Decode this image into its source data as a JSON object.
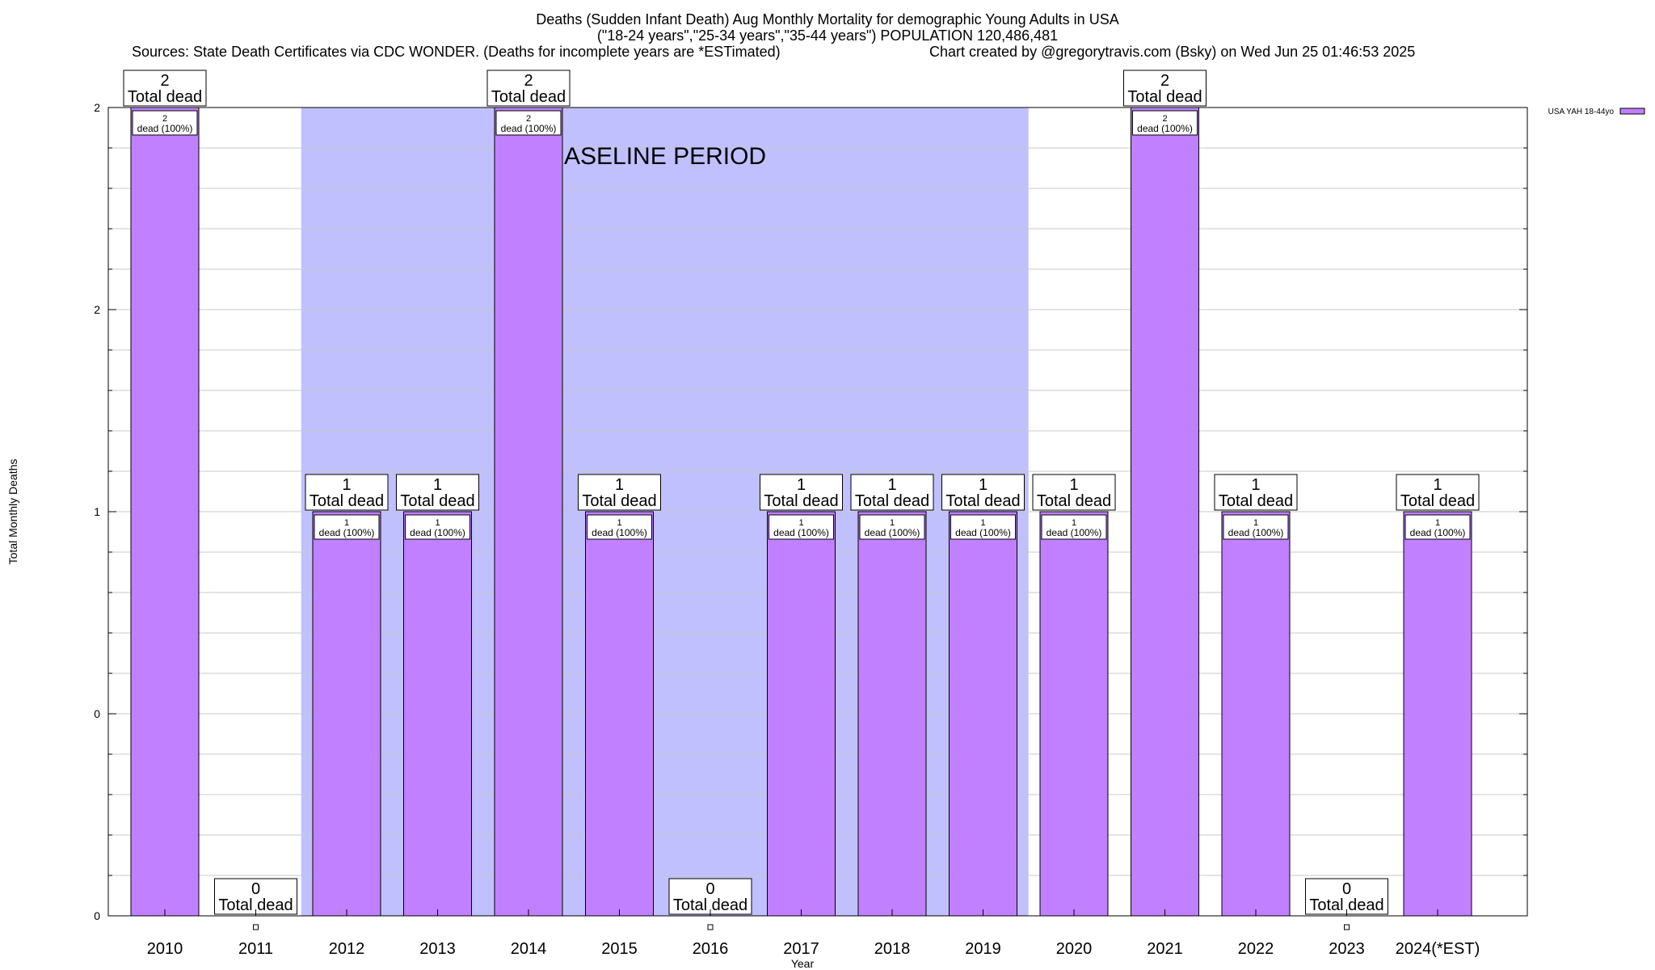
{
  "title": {
    "line1": "Deaths (Sudden Infant Death) Aug Monthly Mortality for demographic Young Adults in USA",
    "line2": "(\"18-24 years\",\"25-34 years\",\"35-44 years\") POPULATION 120,486,481",
    "line3_left": "Sources: State Death Certificates via CDC WONDER. (Deaths for incomplete years are *ESTimated)",
    "line3_right": "Chart created by @gregorytravis.com (Bsky) on Wed Jun 25 01:46:53 2025"
  },
  "chart_data": {
    "type": "bar",
    "xlabel": "Year",
    "ylabel": "Total Monthly Deaths",
    "ylim": [
      0,
      2
    ],
    "y_tick_labels": [
      "0",
      "0",
      "1",
      "2",
      "2"
    ],
    "categories": [
      "2010",
      "2011",
      "2012",
      "2013",
      "2014",
      "2015",
      "2016",
      "2017",
      "2018",
      "2019",
      "2020",
      "2021",
      "2022",
      "2023",
      "2024(*EST)"
    ],
    "series": [
      {
        "name": "USA YAH 18-44yo",
        "values": [
          2,
          0,
          1,
          1,
          2,
          1,
          0,
          1,
          1,
          1,
          1,
          2,
          1,
          0,
          1
        ]
      }
    ],
    "top_label_suffix": "Total dead",
    "inner_label_suffix": "dead (100%)",
    "baseline": {
      "label": "BASELINE PERIOD",
      "from": "2012",
      "to": "2019"
    },
    "legend_position": "top-right",
    "grid": true,
    "colors": {
      "bar": "#c080ff",
      "baseline": "#c0c0ff",
      "grid": "#c8c8c8"
    }
  }
}
